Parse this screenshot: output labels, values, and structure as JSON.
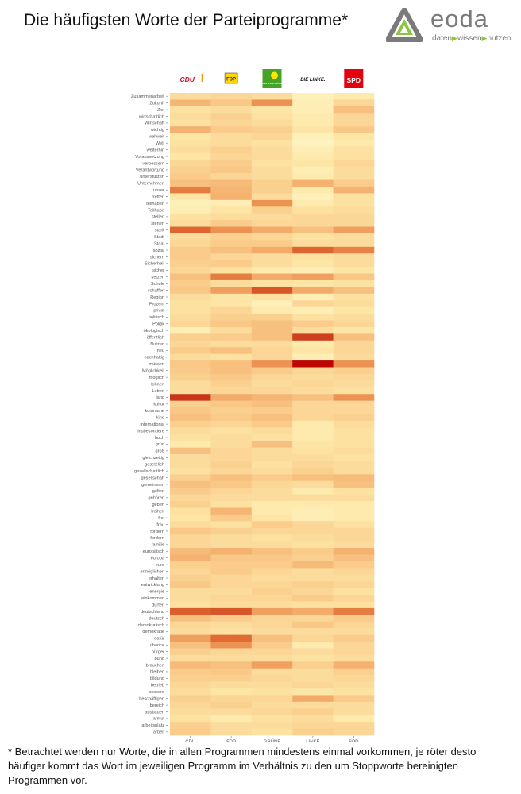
{
  "header": {
    "title": "Die häufigsten Worte der Parteiprogramme*",
    "logo": {
      "icon": "eoda-triangle-logo",
      "word": "eoda",
      "tagline": [
        "daten",
        "wissen",
        "nutzen"
      ],
      "colors": {
        "gray": "#7a7a7a",
        "green": "#8cc63f"
      }
    }
  },
  "parties": [
    {
      "key": "CDU",
      "logo_text": "CDU",
      "logo_color": "#c8102e"
    },
    {
      "key": "FDP",
      "logo_text": "FDP",
      "logo_color": "#ffd600"
    },
    {
      "key": "GRÜNE",
      "logo_text": "BÜNDNIS 90 DIE GRÜNEN",
      "logo_color": "#46a229"
    },
    {
      "key": "LINKE",
      "logo_text": "DIE LINKE.",
      "logo_color": "#111111"
    },
    {
      "key": "SPD",
      "logo_text": "SPD",
      "logo_color": "#e3000f"
    }
  ],
  "chart_data": {
    "type": "heatmap",
    "title": "",
    "xlabel": "",
    "ylabel": "",
    "color_scale": [
      "#fffbd2",
      "#fde8a8",
      "#f9c483",
      "#f0a05e",
      "#e27035",
      "#cc3b1c",
      "#b80000"
    ],
    "value_range": [
      0,
      1
    ],
    "x": [
      "CDU",
      "FDP",
      "GRÜNE",
      "LINKE",
      "SPD"
    ],
    "y": [
      "Zusammenarbeit",
      "Zukunft",
      "Ziel",
      "wirtschaftlich",
      "Wirtschaft",
      "wichtig",
      "weltweit",
      "Welt",
      "weiterhin",
      "Voraussetzung",
      "verbessern",
      "Verantwortung",
      "unterstützen",
      "Unternehmen",
      "unser",
      "treffen",
      "teilhaben",
      "Teilhabe",
      "stellen",
      "stehen",
      "stark",
      "Stadt",
      "Staat",
      "sozial",
      "sichern",
      "Sicherheit",
      "sicher",
      "setzen",
      "Schule",
      "schaffen",
      "Region",
      "Prozent",
      "privat",
      "politisch",
      "Politik",
      "ökologisch",
      "öffentlich",
      "Nutzen",
      "neu",
      "nachhaltig",
      "müssen",
      "Möglichkeit",
      "möglich",
      "lohnen",
      "Leben",
      "land",
      "kultur",
      "kommune",
      "kind",
      "international",
      "insbesondere",
      "hoch",
      "grün",
      "groß",
      "gleichzeitig",
      "gesetzlich",
      "gesellschaftlich",
      "gesellschaft",
      "gemeinsam",
      "gelten",
      "gehören",
      "geben",
      "freiheit",
      "frei",
      "frau",
      "fördern",
      "fordern",
      "familie",
      "europäisch",
      "europa",
      "euro",
      "ermöglichen",
      "erhalten",
      "entwicklung",
      "energie",
      "einkommen",
      "dürfen",
      "deutschland",
      "deutsch",
      "demokratisch",
      "demokratie",
      "dafür",
      "chance",
      "bürger",
      "bund",
      "brauchen",
      "bleiben",
      "bildung",
      "betrieb",
      "bessere",
      "beschäftigen",
      "bereich",
      "ausbauen",
      "armut",
      "arbeitsplatz",
      "arbeit"
    ],
    "values": [
      [
        0.22,
        0.25,
        0.22,
        0.1,
        0.15
      ],
      [
        0.4,
        0.32,
        0.55,
        0.12,
        0.25
      ],
      [
        0.2,
        0.22,
        0.18,
        0.12,
        0.35
      ],
      [
        0.22,
        0.28,
        0.2,
        0.15,
        0.25
      ],
      [
        0.2,
        0.25,
        0.22,
        0.15,
        0.25
      ],
      [
        0.42,
        0.3,
        0.28,
        0.18,
        0.32
      ],
      [
        0.18,
        0.22,
        0.25,
        0.1,
        0.18
      ],
      [
        0.2,
        0.22,
        0.2,
        0.08,
        0.15
      ],
      [
        0.22,
        0.28,
        0.22,
        0.12,
        0.2
      ],
      [
        0.18,
        0.25,
        0.22,
        0.15,
        0.2
      ],
      [
        0.25,
        0.3,
        0.2,
        0.18,
        0.25
      ],
      [
        0.28,
        0.32,
        0.22,
        0.12,
        0.22
      ],
      [
        0.3,
        0.25,
        0.22,
        0.15,
        0.22
      ],
      [
        0.35,
        0.38,
        0.28,
        0.42,
        0.3
      ],
      [
        0.62,
        0.4,
        0.28,
        0.15,
        0.42
      ],
      [
        0.18,
        0.42,
        0.22,
        0.1,
        0.2
      ],
      [
        0.1,
        0.12,
        0.55,
        0.15,
        0.2
      ],
      [
        0.12,
        0.18,
        0.28,
        0.2,
        0.22
      ],
      [
        0.2,
        0.22,
        0.22,
        0.25,
        0.25
      ],
      [
        0.22,
        0.3,
        0.25,
        0.25,
        0.25
      ],
      [
        0.7,
        0.55,
        0.45,
        0.35,
        0.5
      ],
      [
        0.22,
        0.28,
        0.25,
        0.2,
        0.22
      ],
      [
        0.25,
        0.3,
        0.3,
        0.22,
        0.22
      ],
      [
        0.3,
        0.35,
        0.45,
        0.7,
        0.6
      ],
      [
        0.3,
        0.25,
        0.22,
        0.2,
        0.22
      ],
      [
        0.28,
        0.3,
        0.22,
        0.18,
        0.22
      ],
      [
        0.25,
        0.2,
        0.15,
        0.12,
        0.18
      ],
      [
        0.35,
        0.62,
        0.45,
        0.5,
        0.32
      ],
      [
        0.3,
        0.22,
        0.2,
        0.18,
        0.2
      ],
      [
        0.32,
        0.5,
        0.75,
        0.45,
        0.35
      ],
      [
        0.22,
        0.18,
        0.2,
        0.12,
        0.2
      ],
      [
        0.2,
        0.18,
        0.1,
        0.25,
        0.22
      ],
      [
        0.2,
        0.25,
        0.15,
        0.12,
        0.18
      ],
      [
        0.22,
        0.28,
        0.28,
        0.2,
        0.22
      ],
      [
        0.25,
        0.32,
        0.35,
        0.3,
        0.25
      ],
      [
        0.12,
        0.22,
        0.35,
        0.22,
        0.18
      ],
      [
        0.28,
        0.3,
        0.35,
        0.82,
        0.35
      ],
      [
        0.25,
        0.22,
        0.22,
        0.15,
        0.25
      ],
      [
        0.3,
        0.35,
        0.25,
        0.18,
        0.25
      ],
      [
        0.22,
        0.2,
        0.25,
        0.12,
        0.22
      ],
      [
        0.32,
        0.35,
        0.55,
        0.98,
        0.55
      ],
      [
        0.3,
        0.35,
        0.3,
        0.25,
        0.28
      ],
      [
        0.28,
        0.32,
        0.25,
        0.22,
        0.25
      ],
      [
        0.22,
        0.28,
        0.22,
        0.25,
        0.22
      ],
      [
        0.22,
        0.25,
        0.25,
        0.22,
        0.2
      ],
      [
        0.85,
        0.45,
        0.4,
        0.35,
        0.55
      ],
      [
        0.28,
        0.32,
        0.35,
        0.25,
        0.25
      ],
      [
        0.32,
        0.28,
        0.3,
        0.25,
        0.25
      ],
      [
        0.35,
        0.3,
        0.35,
        0.25,
        0.28
      ],
      [
        0.28,
        0.25,
        0.3,
        0.15,
        0.22
      ],
      [
        0.22,
        0.2,
        0.22,
        0.15,
        0.2
      ],
      [
        0.2,
        0.22,
        0.2,
        0.15,
        0.2
      ],
      [
        0.15,
        0.22,
        0.35,
        0.18,
        0.2
      ],
      [
        0.35,
        0.25,
        0.22,
        0.2,
        0.22
      ],
      [
        0.22,
        0.25,
        0.22,
        0.22,
        0.2
      ],
      [
        0.22,
        0.28,
        0.2,
        0.25,
        0.22
      ],
      [
        0.2,
        0.25,
        0.22,
        0.28,
        0.22
      ],
      [
        0.28,
        0.35,
        0.3,
        0.35,
        0.38
      ],
      [
        0.35,
        0.32,
        0.25,
        0.22,
        0.35
      ],
      [
        0.3,
        0.25,
        0.22,
        0.15,
        0.2
      ],
      [
        0.25,
        0.22,
        0.22,
        0.22,
        0.22
      ],
      [
        0.28,
        0.2,
        0.15,
        0.15,
        0.15
      ],
      [
        0.2,
        0.4,
        0.15,
        0.12,
        0.15
      ],
      [
        0.18,
        0.3,
        0.18,
        0.12,
        0.15
      ],
      [
        0.22,
        0.2,
        0.3,
        0.25,
        0.2
      ],
      [
        0.32,
        0.28,
        0.25,
        0.25,
        0.25
      ],
      [
        0.25,
        0.22,
        0.2,
        0.22,
        0.25
      ],
      [
        0.25,
        0.22,
        0.22,
        0.2,
        0.22
      ],
      [
        0.38,
        0.42,
        0.35,
        0.3,
        0.42
      ],
      [
        0.42,
        0.32,
        0.32,
        0.28,
        0.35
      ],
      [
        0.28,
        0.3,
        0.3,
        0.38,
        0.3
      ],
      [
        0.25,
        0.3,
        0.25,
        0.22,
        0.25
      ],
      [
        0.28,
        0.25,
        0.22,
        0.22,
        0.22
      ],
      [
        0.32,
        0.25,
        0.25,
        0.28,
        0.25
      ],
      [
        0.22,
        0.22,
        0.28,
        0.25,
        0.2
      ],
      [
        0.22,
        0.25,
        0.25,
        0.3,
        0.25
      ],
      [
        0.2,
        0.22,
        0.22,
        0.2,
        0.2
      ],
      [
        0.72,
        0.75,
        0.5,
        0.45,
        0.62
      ],
      [
        0.35,
        0.3,
        0.25,
        0.25,
        0.3
      ],
      [
        0.25,
        0.22,
        0.25,
        0.32,
        0.25
      ],
      [
        0.22,
        0.2,
        0.22,
        0.22,
        0.22
      ],
      [
        0.5,
        0.68,
        0.35,
        0.25,
        0.3
      ],
      [
        0.35,
        0.55,
        0.3,
        0.15,
        0.25
      ],
      [
        0.28,
        0.25,
        0.25,
        0.22,
        0.25
      ],
      [
        0.22,
        0.22,
        0.22,
        0.2,
        0.22
      ],
      [
        0.38,
        0.35,
        0.5,
        0.28,
        0.42
      ],
      [
        0.3,
        0.32,
        0.22,
        0.22,
        0.28
      ],
      [
        0.28,
        0.28,
        0.25,
        0.22,
        0.25
      ],
      [
        0.25,
        0.22,
        0.22,
        0.25,
        0.22
      ],
      [
        0.22,
        0.18,
        0.2,
        0.18,
        0.2
      ],
      [
        0.28,
        0.25,
        0.25,
        0.45,
        0.3
      ],
      [
        0.25,
        0.28,
        0.22,
        0.22,
        0.22
      ],
      [
        0.22,
        0.22,
        0.25,
        0.28,
        0.22
      ],
      [
        0.2,
        0.15,
        0.2,
        0.22,
        0.15
      ],
      [
        0.28,
        0.22,
        0.22,
        0.25,
        0.25
      ],
      [
        0.3,
        0.22,
        0.2,
        0.28,
        0.25
      ]
    ]
  },
  "footnote": "* Betrachtet werden nur Worte, die in allen Programmen mindestens einmal vorkommen, je röter desto häufiger kommt das Wort im jeweiligen Programm im Verhältnis zu den um Stoppworte bereinigten Programmen vor."
}
